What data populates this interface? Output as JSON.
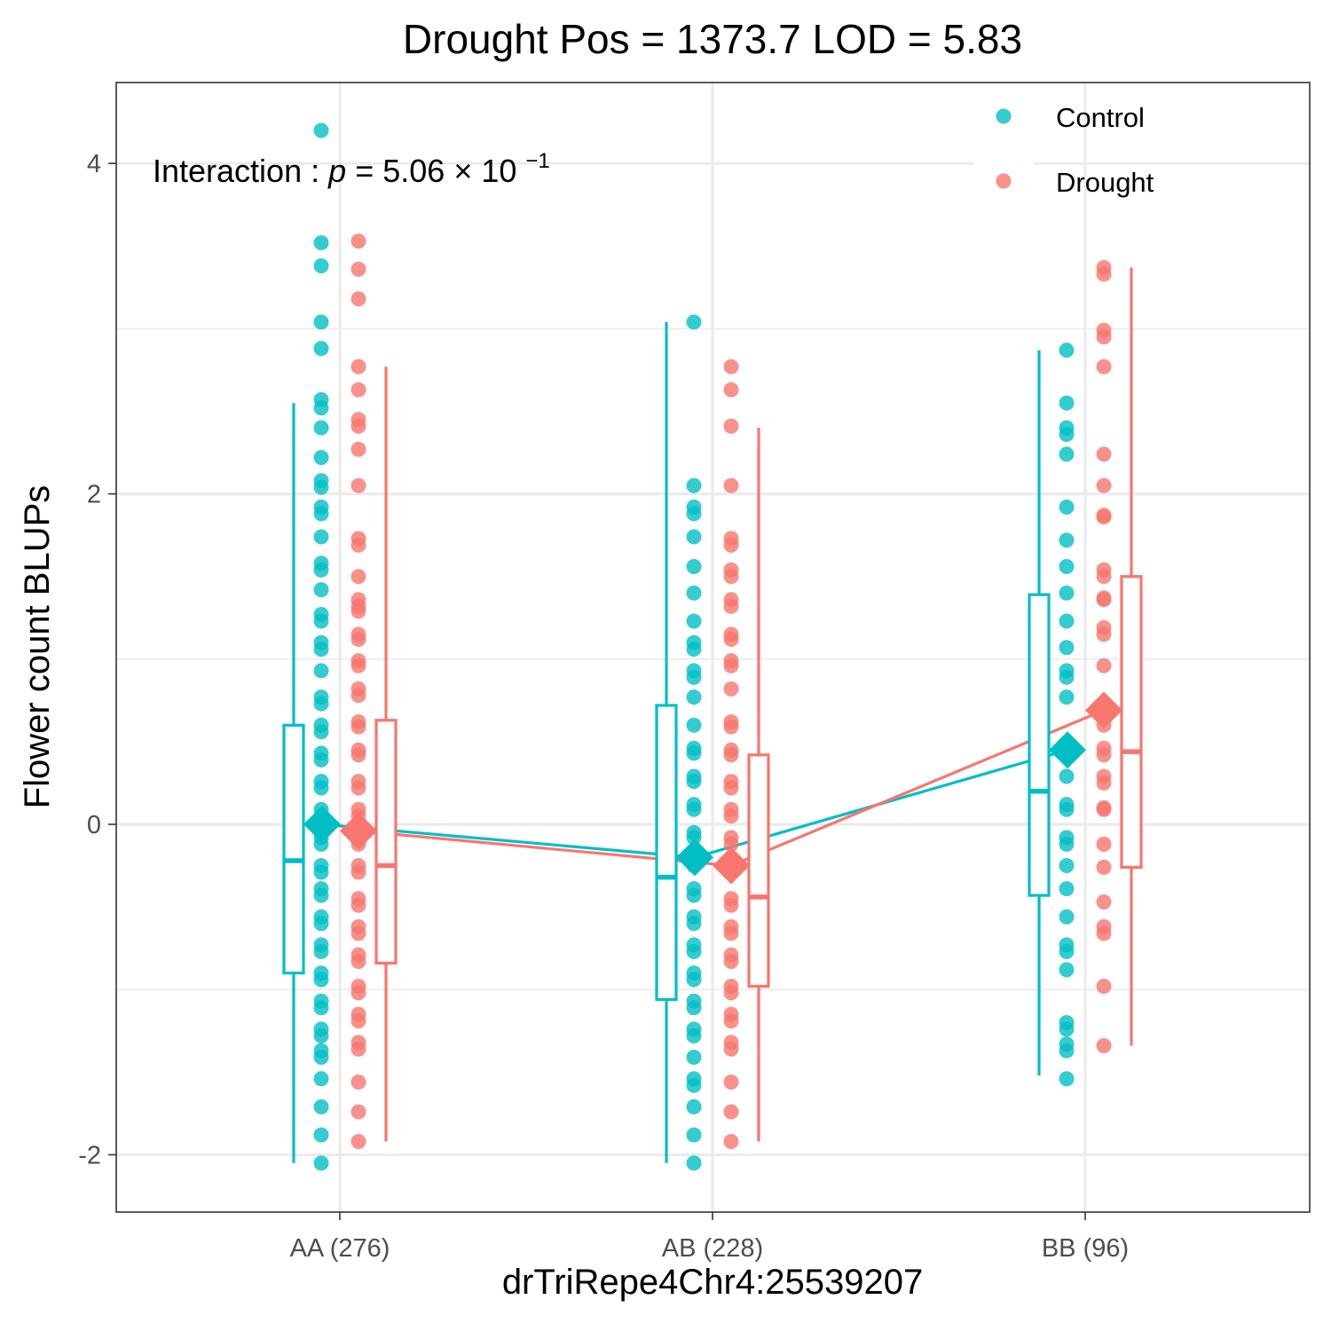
{
  "chart_data": {
    "type": "scatter",
    "title": "Drought Pos = 1373.7 LOD = 5.83",
    "xlabel": "drTriRepe4Chr4:25539207",
    "ylabel": "Flower count BLUPs",
    "categories": [
      "AA (276)",
      "AB (228)",
      "BB (96)"
    ],
    "ylim": [
      -2.34,
      4.5
    ],
    "yticks": [
      -2,
      0,
      2,
      4
    ],
    "ytick_labels": [
      "-2",
      "0",
      "2",
      "4"
    ],
    "grid": true,
    "legend_position": "top-right",
    "annotation": {
      "prefix": "Interaction",
      "p_label": "p",
      "mantissa": "5.06",
      "base": "10",
      "exponent": "−1"
    },
    "series": [
      {
        "name": "Control",
        "color": "#00BFC4",
        "means": [
          0.0,
          -0.2,
          0.45
        ],
        "boxes": [
          {
            "whisker_low": -2.05,
            "q1": -0.9,
            "median": -0.22,
            "q3": 0.6,
            "whisker_high": 2.55
          },
          {
            "whisker_low": -2.05,
            "q1": -1.06,
            "median": -0.32,
            "q3": 0.72,
            "whisker_high": 3.04
          },
          {
            "whisker_low": -1.52,
            "q1": -0.43,
            "median": 0.2,
            "q3": 1.39,
            "whisker_high": 2.87
          }
        ],
        "points": [
          [
            4.2,
            3.52,
            3.38,
            3.04,
            2.88,
            2.57,
            2.52,
            2.4,
            2.22,
            2.08,
            2.04,
            1.92,
            1.88,
            1.74,
            1.58,
            1.54,
            1.42,
            1.27,
            1.23,
            1.1,
            1.06,
            0.93,
            0.77,
            0.73,
            0.6,
            0.56,
            0.43,
            0.39,
            0.26,
            0.22,
            0.09,
            0.05,
            -0.08,
            -0.12,
            -0.25,
            -0.29,
            -0.39,
            -0.43,
            -0.56,
            -0.6,
            -0.73,
            -0.77,
            -0.9,
            -0.94,
            -1.07,
            -1.11,
            -1.24,
            -1.28,
            -1.37,
            -1.41,
            -1.54,
            -1.71,
            -1.88,
            -2.05
          ],
          [
            3.04,
            2.05,
            1.92,
            1.88,
            1.74,
            1.56,
            1.4,
            1.23,
            1.1,
            1.06,
            0.93,
            0.89,
            0.77,
            0.6,
            0.46,
            0.43,
            0.29,
            0.26,
            0.12,
            0.09,
            -0.05,
            -0.08,
            -0.22,
            -0.25,
            -0.39,
            -0.43,
            -0.56,
            -0.6,
            -0.73,
            -0.77,
            -0.9,
            -0.94,
            -1.07,
            -1.11,
            -1.24,
            -1.28,
            -1.41,
            -1.54,
            -1.58,
            -1.71,
            -1.88,
            -2.05
          ],
          [
            2.87,
            2.55,
            2.4,
            2.36,
            2.24,
            1.92,
            1.72,
            1.56,
            1.4,
            1.23,
            1.07,
            0.93,
            0.89,
            0.77,
            0.43,
            0.29,
            0.12,
            0.09,
            -0.08,
            -0.12,
            -0.25,
            -0.39,
            -0.56,
            -0.73,
            -0.77,
            -0.88,
            -1.2,
            -1.24,
            -1.33,
            -1.37,
            -1.54
          ]
        ]
      },
      {
        "name": "Drought",
        "color": "#F8766D",
        "means": [
          -0.04,
          -0.25,
          0.69
        ],
        "boxes": [
          {
            "whisker_low": -1.92,
            "q1": -0.84,
            "median": -0.25,
            "q3": 0.63,
            "whisker_high": 2.77
          },
          {
            "whisker_low": -1.92,
            "q1": -0.98,
            "median": -0.44,
            "q3": 0.42,
            "whisker_high": 2.4
          },
          {
            "whisker_low": -1.34,
            "q1": -0.26,
            "median": 0.44,
            "q3": 1.5,
            "whisker_high": 3.37
          }
        ],
        "points": [
          [
            3.53,
            3.36,
            3.18,
            2.77,
            2.63,
            2.45,
            2.41,
            2.27,
            2.05,
            1.73,
            1.69,
            1.5,
            1.36,
            1.32,
            1.29,
            1.15,
            1.12,
            0.99,
            0.96,
            0.82,
            0.78,
            0.62,
            0.59,
            0.45,
            0.42,
            0.26,
            0.22,
            0.09,
            0.05,
            -0.08,
            -0.12,
            -0.25,
            -0.29,
            -0.45,
            -0.49,
            -0.62,
            -0.66,
            -0.79,
            -0.83,
            -0.98,
            -1.02,
            -1.15,
            -1.19,
            -1.32,
            -1.36,
            -1.56,
            -1.74,
            -1.92
          ],
          [
            2.77,
            2.63,
            2.41,
            2.05,
            1.73,
            1.69,
            1.54,
            1.5,
            1.36,
            1.32,
            1.15,
            1.12,
            0.99,
            0.96,
            0.82,
            0.62,
            0.59,
            0.45,
            0.42,
            0.26,
            0.22,
            0.09,
            0.05,
            -0.08,
            -0.12,
            -0.25,
            -0.29,
            -0.45,
            -0.49,
            -0.62,
            -0.66,
            -0.79,
            -0.83,
            -0.98,
            -1.02,
            -1.15,
            -1.19,
            -1.32,
            -1.36,
            -1.56,
            -1.74,
            -1.92
          ],
          [
            3.37,
            3.33,
            2.99,
            2.95,
            2.77,
            2.24,
            2.05,
            1.87,
            1.86,
            1.54,
            1.5,
            1.37,
            1.36,
            1.19,
            1.15,
            0.96,
            0.6,
            0.46,
            0.42,
            0.29,
            0.25,
            0.1,
            0.09,
            -0.12,
            -0.26,
            -0.47,
            -0.62,
            -0.66,
            -0.98,
            -1.34
          ]
        ]
      }
    ]
  }
}
